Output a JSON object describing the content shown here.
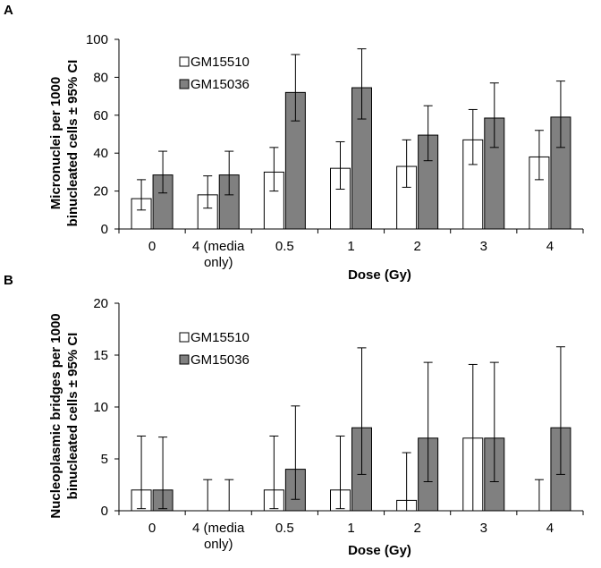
{
  "chart_data": [
    {
      "type": "bar",
      "panel_label": "A",
      "categories": [
        [
          "0"
        ],
        [
          "4 (media",
          "only)"
        ],
        [
          "0.5"
        ],
        [
          "1"
        ],
        [
          "2"
        ],
        [
          "3"
        ],
        [
          "4"
        ]
      ],
      "xlabel": "Dose (Gy)",
      "ylabel": [
        "Micronuclei per 1000",
        "binucleated cells ± 95% CI"
      ],
      "ylim": [
        0,
        100
      ],
      "yticks": [
        0,
        20,
        40,
        60,
        80,
        100
      ],
      "legend_position": "top-left",
      "series": [
        {
          "name": "GM15510",
          "color": "#ffffff",
          "values": [
            16,
            18,
            30,
            32,
            33,
            47,
            38
          ],
          "err_low": [
            10,
            11,
            20,
            21,
            22,
            34,
            26
          ],
          "err_high": [
            26,
            28,
            43,
            46,
            47,
            63,
            52
          ]
        },
        {
          "name": "GM15036",
          "color": "#808080",
          "values": [
            28.5,
            28.5,
            72,
            74.5,
            49.5,
            58.5,
            59
          ],
          "err_low": [
            19,
            18,
            57,
            58,
            36,
            43,
            43
          ],
          "err_high": [
            41,
            41,
            92,
            95,
            65,
            77,
            78
          ]
        }
      ]
    },
    {
      "type": "bar",
      "panel_label": "B",
      "categories": [
        [
          "0"
        ],
        [
          "4 (media",
          "only)"
        ],
        [
          "0.5"
        ],
        [
          "1"
        ],
        [
          "2"
        ],
        [
          "3"
        ],
        [
          "4"
        ]
      ],
      "xlabel": "Dose (Gy)",
      "ylabel": [
        "Nucleoplasmic bridges per 1000",
        "binucleated cells ± 95% CI"
      ],
      "ylim": [
        0,
        20
      ],
      "yticks": [
        0,
        5,
        10,
        15,
        20
      ],
      "legend_position": "top-left",
      "series": [
        {
          "name": "GM15510",
          "color": "#ffffff",
          "values": [
            2,
            0,
            2,
            2,
            1,
            7,
            0
          ],
          "err_low": [
            0.2,
            0,
            0.2,
            0.2,
            0,
            0,
            0
          ],
          "err_high": [
            7.2,
            3,
            7.2,
            7.2,
            5.6,
            14.1,
            3
          ]
        },
        {
          "name": "GM15036",
          "color": "#808080",
          "values": [
            2,
            0,
            4,
            8,
            7,
            7,
            8
          ],
          "err_low": [
            0.2,
            0,
            1.1,
            3.5,
            2.8,
            2.8,
            3.5
          ],
          "err_high": [
            7.1,
            3,
            10.1,
            15.7,
            14.3,
            14.3,
            15.8
          ]
        }
      ]
    }
  ]
}
